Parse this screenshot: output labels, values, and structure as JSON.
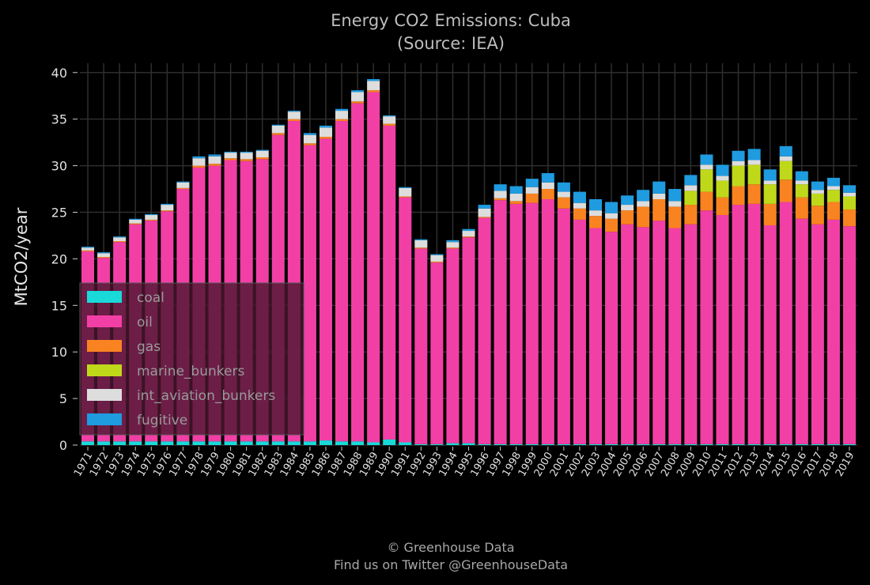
{
  "chart_data": {
    "type": "bar",
    "stacked": true,
    "title": "Energy CO2 Emissions: Cuba",
    "subtitle": "(Source: IEA)",
    "xlabel": "",
    "ylabel": "MtCO2/year",
    "ylim": [
      0,
      41
    ],
    "yticks": [
      0,
      5,
      10,
      15,
      20,
      25,
      30,
      35,
      40
    ],
    "grid": true,
    "legend_position": "lower-left",
    "categories": [
      "1971",
      "1972",
      "1973",
      "1974",
      "1975",
      "1976",
      "1977",
      "1978",
      "1979",
      "1980",
      "1981",
      "1982",
      "1983",
      "1984",
      "1985",
      "1986",
      "1987",
      "1988",
      "1989",
      "1990",
      "1991",
      "1992",
      "1993",
      "1994",
      "1995",
      "1996",
      "1997",
      "1998",
      "1999",
      "2000",
      "2001",
      "2002",
      "2003",
      "2004",
      "2005",
      "2006",
      "2007",
      "2008",
      "2009",
      "2010",
      "2011",
      "2012",
      "2013",
      "2014",
      "2015",
      "2016",
      "2017",
      "2018",
      "2019"
    ],
    "series": [
      {
        "name": "coal",
        "color": "#1ad9d9",
        "values": [
          0.4,
          0.4,
          0.4,
          0.4,
          0.4,
          0.4,
          0.4,
          0.4,
          0.4,
          0.4,
          0.4,
          0.4,
          0.4,
          0.4,
          0.4,
          0.5,
          0.4,
          0.4,
          0.3,
          0.6,
          0.3,
          0.1,
          0.1,
          0.2,
          0.2,
          0.1,
          0.1,
          0.1,
          0.1,
          0.1,
          0.1,
          0.1,
          0.1,
          0.1,
          0.1,
          0.1,
          0.1,
          0.1,
          0.1,
          0.1,
          0.1,
          0.1,
          0.1,
          0.1,
          0.1,
          0.1,
          0.1,
          0.1,
          0.1
        ]
      },
      {
        "name": "oil",
        "color": "#f23fa5",
        "values": [
          20.4,
          19.7,
          21.4,
          23.3,
          23.7,
          24.7,
          27.1,
          29.4,
          29.6,
          30.2,
          30.1,
          30.3,
          32.9,
          34.4,
          31.8,
          32.4,
          34.4,
          36.3,
          37.6,
          33.7,
          26.3,
          21.0,
          19.5,
          20.9,
          22.1,
          24.3,
          26.2,
          25.8,
          25.9,
          26.3,
          25.3,
          24.1,
          23.2,
          22.8,
          23.6,
          23.3,
          24.0,
          23.2,
          23.6,
          25.1,
          24.6,
          25.7,
          25.8,
          23.5,
          26.0,
          24.2,
          23.6,
          24.1,
          23.4
        ]
      },
      {
        "name": "gas",
        "color": "#f98320",
        "values": [
          0.1,
          0.1,
          0.1,
          0.1,
          0.1,
          0.1,
          0.1,
          0.2,
          0.2,
          0.2,
          0.2,
          0.2,
          0.2,
          0.2,
          0.2,
          0.2,
          0.2,
          0.2,
          0.2,
          0.2,
          0.1,
          0.1,
          0.1,
          0.1,
          0.1,
          0.1,
          0.2,
          0.3,
          1.0,
          1.1,
          1.2,
          1.2,
          1.3,
          1.4,
          1.5,
          2.2,
          2.3,
          2.3,
          2.1,
          2.0,
          1.9,
          2.0,
          2.1,
          2.3,
          2.4,
          2.3,
          2.0,
          1.9,
          1.8
        ]
      },
      {
        "name": "marine_bunkers",
        "color": "#bfd91a",
        "values": [
          0,
          0,
          0,
          0,
          0,
          0,
          0,
          0,
          0,
          0,
          0,
          0,
          0,
          0,
          0,
          0,
          0,
          0,
          0,
          0,
          0,
          0,
          0,
          0,
          0,
          0,
          0,
          0,
          0,
          0,
          0,
          0,
          0,
          0,
          0,
          0,
          0,
          0,
          1.5,
          2.4,
          1.8,
          2.2,
          2.1,
          2.1,
          2.0,
          1.4,
          1.3,
          1.3,
          1.4
        ]
      },
      {
        "name": "int_aviation_bunkers",
        "color": "#dddddd",
        "values": [
          0.3,
          0.4,
          0.4,
          0.4,
          0.5,
          0.6,
          0.6,
          0.8,
          0.8,
          0.6,
          0.7,
          0.7,
          0.8,
          0.8,
          0.9,
          1.0,
          0.9,
          1.0,
          1.0,
          0.8,
          0.9,
          0.8,
          0.7,
          0.6,
          0.6,
          0.9,
          0.8,
          0.8,
          0.7,
          0.7,
          0.6,
          0.6,
          0.6,
          0.6,
          0.6,
          0.6,
          0.6,
          0.6,
          0.6,
          0.5,
          0.5,
          0.5,
          0.5,
          0.4,
          0.5,
          0.4,
          0.4,
          0.4,
          0.4
        ]
      },
      {
        "name": "fugitive",
        "color": "#1f9be0",
        "values": [
          0.1,
          0.1,
          0.1,
          0.1,
          0.1,
          0.1,
          0.1,
          0.2,
          0.2,
          0.1,
          0.1,
          0.1,
          0.1,
          0.1,
          0.2,
          0.2,
          0.2,
          0.2,
          0.2,
          0.1,
          0.1,
          0.1,
          0.1,
          0.2,
          0.2,
          0.4,
          0.7,
          0.8,
          0.9,
          1.0,
          1.0,
          1.2,
          1.2,
          1.2,
          1.0,
          1.2,
          1.3,
          1.3,
          1.1,
          1.1,
          1.2,
          1.1,
          1.2,
          1.2,
          1.1,
          1.0,
          0.9,
          0.9,
          0.8
        ]
      }
    ]
  },
  "footer": {
    "line1": "© Greenhouse Data",
    "line2": "Find us on Twitter @GreenhouseData"
  },
  "style": {
    "background": "#000000",
    "grid_color": "#2e2e2e",
    "legend_background": "#4a1630"
  }
}
